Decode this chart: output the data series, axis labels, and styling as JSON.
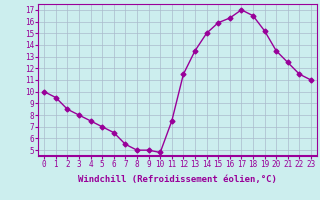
{
  "x": [
    0,
    1,
    2,
    3,
    4,
    5,
    6,
    7,
    8,
    9,
    10,
    11,
    12,
    13,
    14,
    15,
    16,
    17,
    18,
    19,
    20,
    21,
    22,
    23
  ],
  "y": [
    10,
    9.5,
    8.5,
    8,
    7.5,
    7,
    6.5,
    5.5,
    5,
    5,
    4.8,
    7.5,
    11.5,
    13.5,
    15,
    15.9,
    16.3,
    17,
    16.5,
    15.2,
    13.5,
    12.5,
    11.5,
    11
  ],
  "line_color": "#990099",
  "marker": "D",
  "marker_size": 2.5,
  "bg_color": "#cceeee",
  "grid_color": "#aabbcc",
  "xlabel": "Windchill (Refroidissement éolien,°C)",
  "xlim_min": -0.5,
  "xlim_max": 23.5,
  "ylim_min": 4.5,
  "ylim_max": 17.5,
  "yticks": [
    5,
    6,
    7,
    8,
    9,
    10,
    11,
    12,
    13,
    14,
    15,
    16,
    17
  ],
  "xtick_labels": [
    "0",
    "1",
    "2",
    "3",
    "4",
    "5",
    "6",
    "7",
    "8",
    "9",
    "10",
    "11",
    "12",
    "13",
    "14",
    "15",
    "16",
    "17",
    "18",
    "19",
    "20",
    "21",
    "22",
    "23"
  ],
  "tick_fontsize": 5.5,
  "xlabel_fontsize": 6.5
}
